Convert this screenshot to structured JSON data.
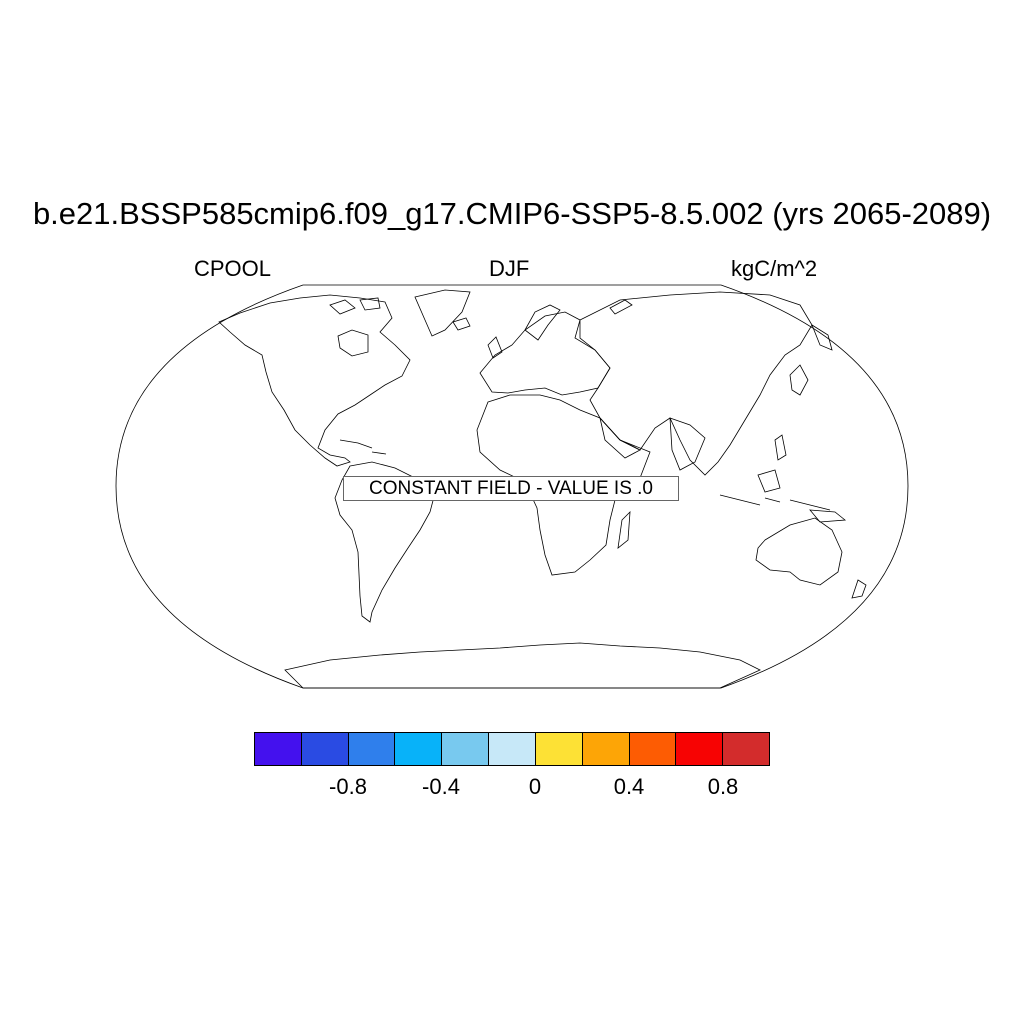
{
  "title": "b.e21.BSSP585cmip6.f09_g17.CMIP6-SSP5-8.5.002 (yrs 2065-2089)",
  "left_label": "CPOOL",
  "center_label": "DJF",
  "right_label": "kgC/m^2",
  "message": "CONSTANT FIELD - VALUE IS .0",
  "projection": "Robinson",
  "colorbar": {
    "colors": [
      "#4411ee",
      "#2a4be3",
      "#2f7fec",
      "#08b2f9",
      "#78c9ef",
      "#c7e8f8",
      "#fde135",
      "#fda506",
      "#fd5c03",
      "#f70303",
      "#d32c2c"
    ],
    "tick_labels": [
      "-0.8",
      "-0.4",
      "0",
      "0.4",
      "0.8"
    ]
  }
}
